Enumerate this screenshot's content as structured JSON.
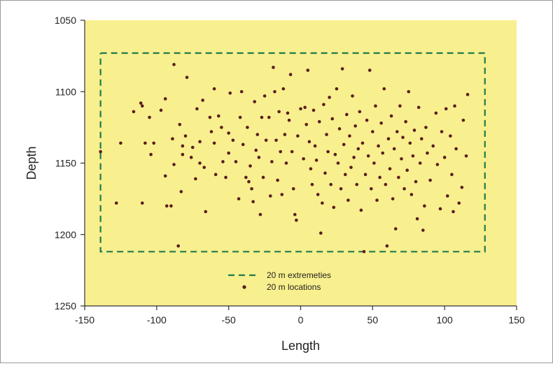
{
  "chart_data": {
    "type": "scatter",
    "title": "",
    "xlabel": "Length",
    "ylabel": "Depth",
    "xlim": [
      -150,
      150
    ],
    "ylim": [
      1050,
      1250
    ],
    "y_inverted": true,
    "xticks": [
      "-150",
      "-100",
      "-50",
      "0",
      "50",
      "100",
      "150"
    ],
    "yticks": [
      "1050",
      "1100",
      "1150",
      "1200",
      "1250"
    ],
    "grid": false,
    "legend_position": "bottom-center",
    "colors": {
      "plot_background": "#f8ef8e",
      "extremeties_line": "#1f7a4d",
      "points": "#5a1c1c"
    },
    "series": [
      {
        "name": "20 m extremeties",
        "style": "dashed-line",
        "x": [
          -139,
          128,
          128,
          -139,
          -139
        ],
        "y": [
          1073,
          1073,
          1212,
          1212,
          1073
        ]
      },
      {
        "name": "20 m locations",
        "style": "markers",
        "points": [
          [
            -139,
            1142
          ],
          [
            -125,
            1136
          ],
          [
            -128,
            1178
          ],
          [
            -116,
            1114
          ],
          [
            -111,
            1108
          ],
          [
            -110,
            1110
          ],
          [
            -110,
            1178
          ],
          [
            -108,
            1136
          ],
          [
            -104,
            1144
          ],
          [
            -102,
            1136
          ],
          [
            -105,
            1118
          ],
          [
            -97,
            1113
          ],
          [
            -93,
            1180
          ],
          [
            -94,
            1159
          ],
          [
            -90,
            1180
          ],
          [
            -94,
            1105
          ],
          [
            -89,
            1133
          ],
          [
            -88,
            1151
          ],
          [
            -88,
            1081
          ],
          [
            -84,
            1123
          ],
          [
            -82,
            1144
          ],
          [
            -82,
            1138
          ],
          [
            -83,
            1170
          ],
          [
            -80,
            1131
          ],
          [
            -85,
            1208
          ],
          [
            -79,
            1090
          ],
          [
            -76,
            1146
          ],
          [
            -75,
            1139
          ],
          [
            -73,
            1161
          ],
          [
            -72,
            1112
          ],
          [
            -70,
            1135
          ],
          [
            -70,
            1150
          ],
          [
            -68,
            1106
          ],
          [
            -67,
            1153
          ],
          [
            -66,
            1184
          ],
          [
            -63,
            1118
          ],
          [
            -62,
            1128
          ],
          [
            -60,
            1136
          ],
          [
            -60,
            1098
          ],
          [
            -59,
            1158
          ],
          [
            -57,
            1117
          ],
          [
            -55,
            1125
          ],
          [
            -54,
            1149
          ],
          [
            -52,
            1160
          ],
          [
            -50,
            1129
          ],
          [
            -50,
            1143
          ],
          [
            -49,
            1101
          ],
          [
            -47,
            1134
          ],
          [
            -45,
            1149
          ],
          [
            -43,
            1175
          ],
          [
            -42,
            1118
          ],
          [
            -41,
            1100
          ],
          [
            -40,
            1137
          ],
          [
            -38,
            1160
          ],
          [
            -37,
            1125
          ],
          [
            -36,
            1163
          ],
          [
            -35,
            1152
          ],
          [
            -34,
            1168
          ],
          [
            -33,
            1177
          ],
          [
            -32,
            1107
          ],
          [
            -31,
            1141
          ],
          [
            -30,
            1130
          ],
          [
            -29,
            1146
          ],
          [
            -28,
            1186
          ],
          [
            -27,
            1118
          ],
          [
            -26,
            1160
          ],
          [
            -25,
            1103
          ],
          [
            -24,
            1134
          ],
          [
            -22,
            1118
          ],
          [
            -21,
            1173
          ],
          [
            -20,
            1149
          ],
          [
            -19,
            1083
          ],
          [
            -18,
            1100
          ],
          [
            -17,
            1134
          ],
          [
            -16,
            1162
          ],
          [
            -15,
            1114
          ],
          [
            -14,
            1142
          ],
          [
            -13,
            1172
          ],
          [
            -12,
            1098
          ],
          [
            -11,
            1130
          ],
          [
            -10,
            1150
          ],
          [
            -9,
            1115
          ],
          [
            -8,
            1120
          ],
          [
            -7,
            1088
          ],
          [
            -6,
            1142
          ],
          [
            -5,
            1168
          ],
          [
            -4,
            1186
          ],
          [
            -3,
            1190
          ],
          [
            -2,
            1131
          ],
          [
            0,
            1112
          ],
          [
            2,
            1147
          ],
          [
            3,
            1111
          ],
          [
            4,
            1123
          ],
          [
            5,
            1085
          ],
          [
            6,
            1135
          ],
          [
            7,
            1154
          ],
          [
            8,
            1165
          ],
          [
            9,
            1113
          ],
          [
            10,
            1138
          ],
          [
            11,
            1148
          ],
          [
            12,
            1172
          ],
          [
            13,
            1121
          ],
          [
            14,
            1199
          ],
          [
            15,
            1178
          ],
          [
            16,
            1109
          ],
          [
            17,
            1157
          ],
          [
            18,
            1130
          ],
          [
            19,
            1142
          ],
          [
            20,
            1104
          ],
          [
            21,
            1165
          ],
          [
            22,
            1119
          ],
          [
            23,
            1181
          ],
          [
            24,
            1144
          ],
          [
            25,
            1098
          ],
          [
            26,
            1150
          ],
          [
            27,
            1126
          ],
          [
            28,
            1168
          ],
          [
            29,
            1084
          ],
          [
            30,
            1137
          ],
          [
            31,
            1158
          ],
          [
            32,
            1116
          ],
          [
            33,
            1176
          ],
          [
            34,
            1131
          ],
          [
            35,
            1153
          ],
          [
            36,
            1103
          ],
          [
            37,
            1146
          ],
          [
            38,
            1124
          ],
          [
            39,
            1165
          ],
          [
            40,
            1140
          ],
          [
            41,
            1114
          ],
          [
            42,
            1183
          ],
          [
            43,
            1136
          ],
          [
            44,
            1212
          ],
          [
            45,
            1158
          ],
          [
            46,
            1120
          ],
          [
            47,
            1145
          ],
          [
            48,
            1085
          ],
          [
            49,
            1168
          ],
          [
            50,
            1128
          ],
          [
            51,
            1150
          ],
          [
            52,
            1110
          ],
          [
            53,
            1176
          ],
          [
            54,
            1138
          ],
          [
            55,
            1160
          ],
          [
            56,
            1122
          ],
          [
            57,
            1143
          ],
          [
            58,
            1098
          ],
          [
            59,
            1165
          ],
          [
            60,
            1208
          ],
          [
            61,
            1133
          ],
          [
            62,
            1154
          ],
          [
            63,
            1117
          ],
          [
            64,
            1175
          ],
          [
            65,
            1140
          ],
          [
            66,
            1196
          ],
          [
            67,
            1128
          ],
          [
            68,
            1160
          ],
          [
            69,
            1110
          ],
          [
            70,
            1147
          ],
          [
            71,
            1132
          ],
          [
            72,
            1168
          ],
          [
            73,
            1121
          ],
          [
            74,
            1155
          ],
          [
            75,
            1100
          ],
          [
            76,
            1136
          ],
          [
            77,
            1172
          ],
          [
            78,
            1145
          ],
          [
            79,
            1127
          ],
          [
            80,
            1163
          ],
          [
            81,
            1189
          ],
          [
            82,
            1111
          ],
          [
            83,
            1150
          ],
          [
            84,
            1133
          ],
          [
            85,
            1197
          ],
          [
            86,
            1180
          ],
          [
            87,
            1125
          ],
          [
            88,
            1143
          ],
          [
            90,
            1162
          ],
          [
            92,
            1138
          ],
          [
            94,
            1115
          ],
          [
            95,
            1151
          ],
          [
            97,
            1182
          ],
          [
            98,
            1128
          ],
          [
            100,
            1146
          ],
          [
            101,
            1112
          ],
          [
            102,
            1173
          ],
          [
            104,
            1131
          ],
          [
            105,
            1158
          ],
          [
            106,
            1184
          ],
          [
            107,
            1110
          ],
          [
            108,
            1140
          ],
          [
            110,
            1178
          ],
          [
            112,
            1167
          ],
          [
            113,
            1120
          ],
          [
            115,
            1145
          ],
          [
            116,
            1102
          ]
        ]
      }
    ]
  }
}
